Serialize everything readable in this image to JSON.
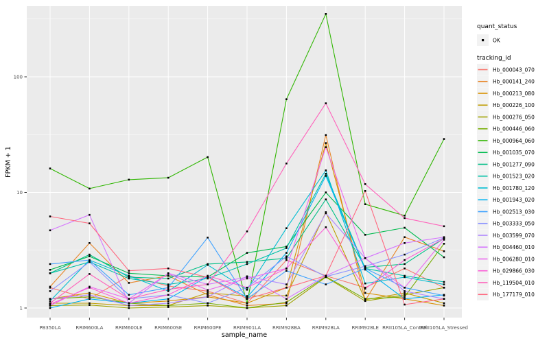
{
  "chart_data": {
    "type": "line",
    "title": "",
    "xlabel": "sample_name",
    "ylabel": "FPKM + 1",
    "y_scale": "log10",
    "y_ticks": [
      1,
      10,
      100
    ],
    "y_minor_ticks": [
      3.162,
      31.62,
      316.2
    ],
    "ylim": [
      1,
      408
    ],
    "grid": "white major and minor gridlines on gray panel",
    "legend_position": "right",
    "point_marker": "small black square on every vertex",
    "x_categories": [
      "PB350LA",
      "RRIM600LA",
      "RRIM600LE",
      "RRIM600SE",
      "RRIM600PE",
      "RRIM901LA",
      "RRIM928BA",
      "RRIM928LA",
      "RRIM928LE",
      "RRII105LA_Control",
      "RRII105LA_Stressed"
    ],
    "series": [
      {
        "name": "Hb_000043_070",
        "color": "#F8766D",
        "values": [
          1.5,
          1.2,
          1.9,
          1.55,
          1.4,
          1.1,
          2.6,
          1.9,
          1.5,
          2.2,
          1.5
        ]
      },
      {
        "name": "Hb_000141_240",
        "color": "#E88526",
        "values": [
          1.53,
          3.65,
          1.65,
          1.9,
          1.3,
          1.05,
          1.1,
          31.4,
          1.16,
          4.1,
          3.1
        ]
      },
      {
        "name": "Hb_000213_080",
        "color": "#D89000",
        "values": [
          1.2,
          1.35,
          1.1,
          1.15,
          1.25,
          1.1,
          1.5,
          26.7,
          1.35,
          1.2,
          1.05
        ]
      },
      {
        "name": "Hb_000226_100",
        "color": "#BE9C00",
        "values": [
          1.1,
          1.1,
          1.05,
          1.05,
          1.35,
          1.27,
          1.28,
          6.75,
          1.18,
          1.35,
          1.1
        ]
      },
      {
        "name": "Hb_000276_050",
        "color": "#A0A400",
        "values": [
          1.05,
          1.06,
          1.0,
          1.02,
          1.05,
          1.0,
          1.05,
          1.85,
          1.15,
          1.3,
          1.5
        ]
      },
      {
        "name": "Hb_000446_060",
        "color": "#75AD00",
        "values": [
          1.2,
          1.25,
          1.1,
          1.05,
          1.1,
          1.0,
          1.12,
          1.87,
          1.2,
          1.25,
          3.6
        ]
      },
      {
        "name": "Hb_000964_060",
        "color": "#2FB600",
        "values": [
          16.1,
          10.8,
          12.9,
          13.4,
          20.2,
          1.1,
          64,
          350,
          7.9,
          6.3,
          29
        ]
      },
      {
        "name": "Hb_001035_070",
        "color": "#00BB4E",
        "values": [
          2.14,
          2.8,
          2.0,
          1.9,
          1.85,
          3.0,
          3.4,
          10.0,
          4.3,
          4.95,
          2.75
        ]
      },
      {
        "name": "Hb_001277_090",
        "color": "#00BF86",
        "values": [
          2.0,
          2.9,
          1.85,
          1.8,
          2.4,
          2.5,
          2.7,
          8.7,
          2.25,
          2.4,
          4.0
        ]
      },
      {
        "name": "Hb_001523_020",
        "color": "#00C1A7",
        "values": [
          2.0,
          2.5,
          1.8,
          1.6,
          1.8,
          2.4,
          3.3,
          14.5,
          2.2,
          1.9,
          1.68
        ]
      },
      {
        "name": "Hb_001780_120",
        "color": "#00BDD1",
        "values": [
          1.15,
          2.6,
          1.9,
          1.4,
          2.36,
          1.44,
          4.9,
          15.5,
          1.63,
          1.85,
          1.6
        ]
      },
      {
        "name": "Hb_001943_020",
        "color": "#00B3F2",
        "values": [
          1.0,
          1.2,
          1.1,
          1.2,
          1.87,
          1.24,
          3.0,
          13.9,
          2.15,
          1.2,
          1.3
        ]
      },
      {
        "name": "Hb_002513_030",
        "color": "#3FA2FF",
        "values": [
          2.4,
          2.6,
          1.3,
          1.5,
          4.07,
          1.2,
          2.1,
          1.6,
          2.2,
          1.5,
          1.28
        ]
      },
      {
        "name": "Hb_003333_050",
        "color": "#8B93FF",
        "values": [
          1.4,
          2.5,
          1.2,
          1.3,
          1.1,
          1.5,
          2.8,
          1.87,
          2.3,
          2.9,
          4.05
        ]
      },
      {
        "name": "Hb_003599_070",
        "color": "#AE87FF",
        "values": [
          1.2,
          1.3,
          1.05,
          1.1,
          1.25,
          1.88,
          1.6,
          6.6,
          2.7,
          1.4,
          1.2
        ]
      },
      {
        "name": "Hb_004460_010",
        "color": "#D575FE",
        "values": [
          4.7,
          6.4,
          1.1,
          2.0,
          1.6,
          1.85,
          1.2,
          1.9,
          2.7,
          3.65,
          4.1
        ]
      },
      {
        "name": "Hb_006280_010",
        "color": "#EC69EF",
        "values": [
          1.05,
          1.53,
          1.2,
          1.98,
          1.43,
          1.8,
          2.2,
          24.6,
          2.7,
          1.5,
          3.9
        ]
      },
      {
        "name": "Hb_029866_030",
        "color": "#FB61D7",
        "values": [
          1.08,
          1.5,
          1.1,
          1.3,
          1.9,
          1.5,
          2.2,
          5.0,
          1.47,
          2.6,
          4.0
        ]
      },
      {
        "name": "Hb_119504_010",
        "color": "#FF62BB",
        "values": [
          1.1,
          1.97,
          1.2,
          1.45,
          1.6,
          4.6,
          17.8,
          59,
          11.8,
          6.0,
          5.1
        ]
      },
      {
        "name": "Hb_177179_010",
        "color": "#FF687F",
        "values": [
          6.2,
          5.4,
          2.1,
          2.2,
          1.85,
          1.2,
          1.5,
          1.9,
          10.3,
          1.07,
          1.2
        ]
      }
    ]
  },
  "legend": {
    "quant_status": {
      "title": "quant_status",
      "items": [
        {
          "label": "OK",
          "marker": "black-point"
        }
      ]
    },
    "tracking_id": {
      "title": "tracking_id"
    }
  },
  "colors": {
    "panel_bg": "#EBEBEB",
    "grid": "#FFFFFF",
    "legend_key_bg": "#F2F2F2",
    "point": "#000000",
    "tick_text": "#4d4d4d"
  }
}
